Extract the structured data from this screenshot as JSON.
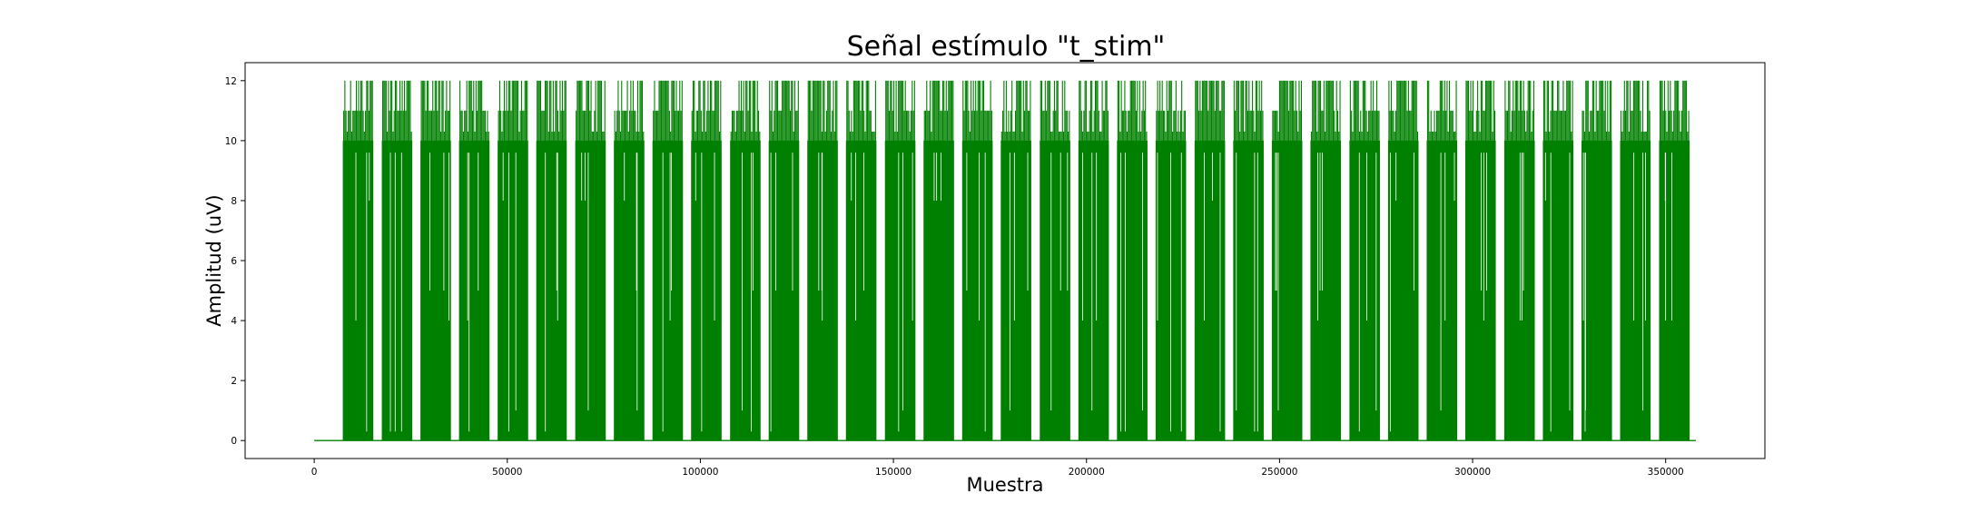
{
  "chart_data": {
    "type": "line",
    "title": "Señal estímulo \"t_stim\"",
    "xlabel": "Muestra",
    "ylabel": "Amplitud (uV)",
    "xlim": [
      -17900,
      375700
    ],
    "ylim": [
      -0.6,
      12.6
    ],
    "xticks": [
      0,
      50000,
      100000,
      150000,
      200000,
      250000,
      300000,
      350000
    ],
    "xtick_labels": [
      "0",
      "50000",
      "100000",
      "150000",
      "200000",
      "250000",
      "300000",
      "350000"
    ],
    "yticks": [
      0,
      2,
      4,
      6,
      8,
      10,
      12
    ],
    "ytick_labels": [
      "0",
      "2",
      "4",
      "6",
      "8",
      "10",
      "12"
    ],
    "grid": false,
    "legend": "none",
    "series": [
      {
        "color": "#008000",
        "baseline": 0,
        "x_end": 357800,
        "block_starts": [
          7400,
          17500,
          27500,
          37500,
          47500,
          57500,
          67600,
          77600,
          87600,
          97600,
          107700,
          117700,
          127700,
          137700,
          147800,
          157800,
          167800,
          177800,
          187900,
          197900,
          207900,
          217900,
          228000,
          238000,
          248000,
          258000,
          268100,
          278100,
          288100,
          298100,
          308200,
          318200,
          328200,
          338200,
          348300
        ],
        "block_width": 7900,
        "value_levels": [
          0,
          1,
          4,
          5,
          8,
          9,
          10,
          11,
          12
        ]
      }
    ]
  }
}
